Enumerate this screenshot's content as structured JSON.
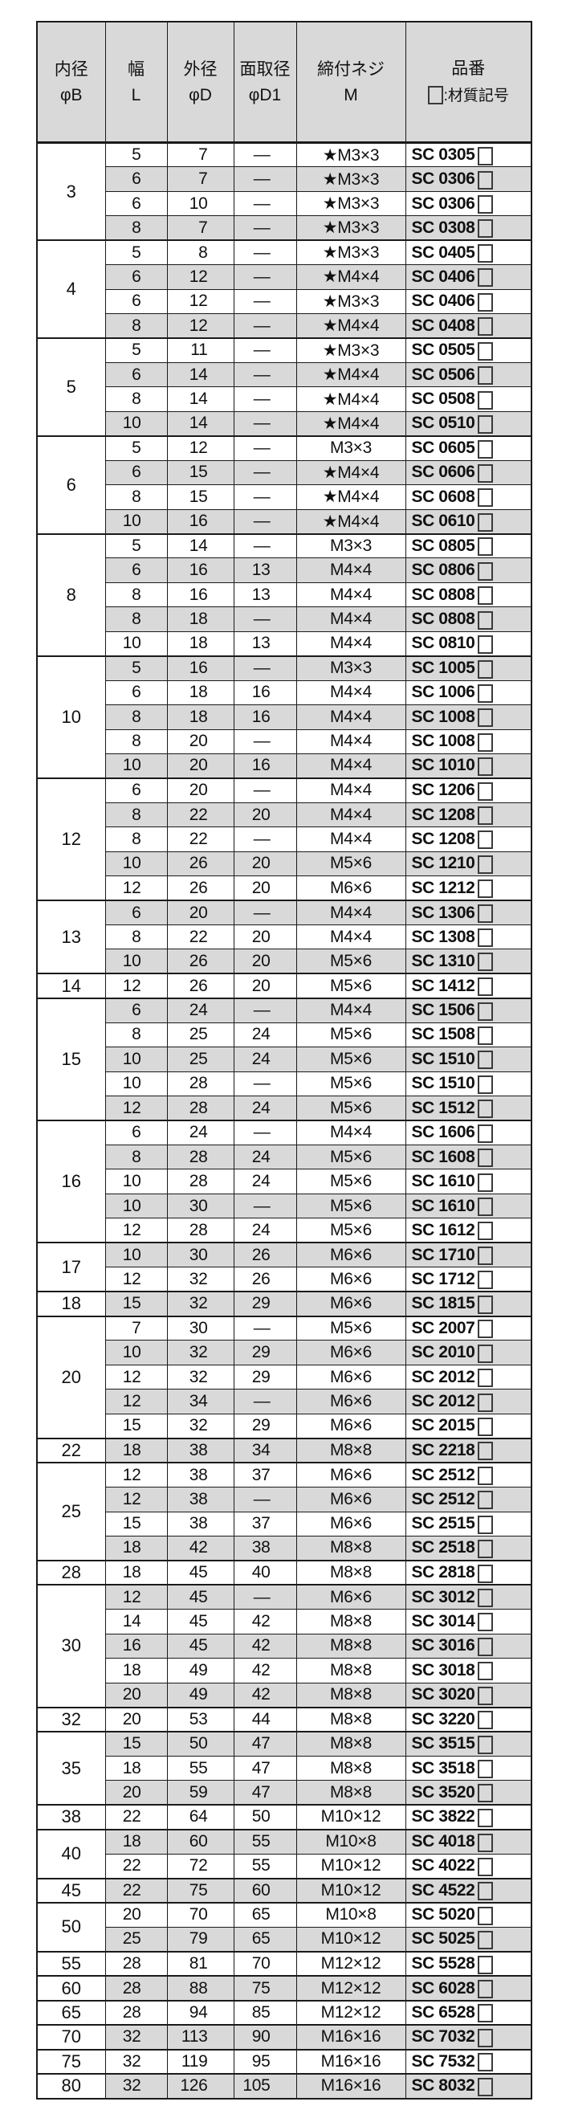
{
  "colors": {
    "border": "#1a1a1a",
    "row_alt_gray": "#d9d9d9",
    "header_gray": "#d9d9d9",
    "text": "#111111"
  },
  "table": {
    "headers": [
      {
        "line1": "内径",
        "line2": "φB",
        "box_prefix": false
      },
      {
        "line1": "幅",
        "line2": "L",
        "box_prefix": false
      },
      {
        "line1": "外径",
        "line2": "φD",
        "box_prefix": false
      },
      {
        "line1": "面取径",
        "line2": "φD1",
        "box_prefix": false
      },
      {
        "line1": "締付ネジ",
        "line2": "M",
        "box_prefix": false
      },
      {
        "line1": "品番",
        "line2": ":材質記号",
        "box_prefix": true
      }
    ],
    "groups": [
      {
        "bore": "3",
        "rows": [
          [
            "5",
            "7",
            "—",
            "★M3×3",
            "SC 0305"
          ],
          [
            "6",
            "7",
            "—",
            "★M3×3",
            "SC 0306"
          ],
          [
            "6",
            "10",
            "—",
            "★M3×3",
            "SC 0306"
          ],
          [
            "8",
            "7",
            "—",
            "★M3×3",
            "SC 0308"
          ]
        ]
      },
      {
        "bore": "4",
        "rows": [
          [
            "5",
            "8",
            "—",
            "★M3×3",
            "SC 0405"
          ],
          [
            "6",
            "12",
            "—",
            "★M4×4",
            "SC 0406"
          ],
          [
            "6",
            "12",
            "—",
            "★M3×3",
            "SC 0406"
          ],
          [
            "8",
            "12",
            "—",
            "★M4×4",
            "SC 0408"
          ]
        ]
      },
      {
        "bore": "5",
        "rows": [
          [
            "5",
            "11",
            "—",
            "★M3×3",
            "SC 0505"
          ],
          [
            "6",
            "14",
            "—",
            "★M4×4",
            "SC 0506"
          ],
          [
            "8",
            "14",
            "—",
            "★M4×4",
            "SC 0508"
          ],
          [
            "10",
            "14",
            "—",
            "★M4×4",
            "SC 0510"
          ]
        ]
      },
      {
        "bore": "6",
        "rows": [
          [
            "5",
            "12",
            "—",
            "M3×3",
            "SC 0605"
          ],
          [
            "6",
            "15",
            "—",
            "★M4×4",
            "SC 0606"
          ],
          [
            "8",
            "15",
            "—",
            "★M4×4",
            "SC 0608"
          ],
          [
            "10",
            "16",
            "—",
            "★M4×4",
            "SC 0610"
          ]
        ]
      },
      {
        "bore": "8",
        "rows": [
          [
            "5",
            "14",
            "—",
            "M3×3",
            "SC 0805"
          ],
          [
            "6",
            "16",
            "13",
            "M4×4",
            "SC 0806"
          ],
          [
            "8",
            "16",
            "13",
            "M4×4",
            "SC 0808"
          ],
          [
            "8",
            "18",
            "—",
            "M4×4",
            "SC 0808"
          ],
          [
            "10",
            "18",
            "13",
            "M4×4",
            "SC 0810"
          ]
        ]
      },
      {
        "bore": "10",
        "rows": [
          [
            "5",
            "16",
            "—",
            "M3×3",
            "SC 1005"
          ],
          [
            "6",
            "18",
            "16",
            "M4×4",
            "SC 1006"
          ],
          [
            "8",
            "18",
            "16",
            "M4×4",
            "SC 1008"
          ],
          [
            "8",
            "20",
            "—",
            "M4×4",
            "SC 1008"
          ],
          [
            "10",
            "20",
            "16",
            "M4×4",
            "SC 1010"
          ]
        ]
      },
      {
        "bore": "12",
        "rows": [
          [
            "6",
            "20",
            "—",
            "M4×4",
            "SC 1206"
          ],
          [
            "8",
            "22",
            "20",
            "M4×4",
            "SC 1208"
          ],
          [
            "8",
            "22",
            "—",
            "M4×4",
            "SC 1208"
          ],
          [
            "10",
            "26",
            "20",
            "M5×6",
            "SC 1210"
          ],
          [
            "12",
            "26",
            "20",
            "M6×6",
            "SC 1212"
          ]
        ]
      },
      {
        "bore": "13",
        "rows": [
          [
            "6",
            "20",
            "—",
            "M4×4",
            "SC 1306"
          ],
          [
            "8",
            "22",
            "20",
            "M4×4",
            "SC 1308"
          ],
          [
            "10",
            "26",
            "20",
            "M5×6",
            "SC 1310"
          ]
        ]
      },
      {
        "bore": "14",
        "rows": [
          [
            "12",
            "26",
            "20",
            "M5×6",
            "SC 1412"
          ]
        ]
      },
      {
        "bore": "15",
        "rows": [
          [
            "6",
            "24",
            "—",
            "M4×4",
            "SC 1506"
          ],
          [
            "8",
            "25",
            "24",
            "M5×6",
            "SC 1508"
          ],
          [
            "10",
            "25",
            "24",
            "M5×6",
            "SC 1510"
          ],
          [
            "10",
            "28",
            "—",
            "M5×6",
            "SC 1510"
          ],
          [
            "12",
            "28",
            "24",
            "M5×6",
            "SC 1512"
          ]
        ]
      },
      {
        "bore": "16",
        "rows": [
          [
            "6",
            "24",
            "—",
            "M4×4",
            "SC 1606"
          ],
          [
            "8",
            "28",
            "24",
            "M5×6",
            "SC 1608"
          ],
          [
            "10",
            "28",
            "24",
            "M5×6",
            "SC 1610"
          ],
          [
            "10",
            "30",
            "—",
            "M5×6",
            "SC 1610"
          ],
          [
            "12",
            "28",
            "24",
            "M5×6",
            "SC 1612"
          ]
        ]
      },
      {
        "bore": "17",
        "rows": [
          [
            "10",
            "30",
            "26",
            "M6×6",
            "SC 1710"
          ],
          [
            "12",
            "32",
            "26",
            "M6×6",
            "SC 1712"
          ]
        ]
      },
      {
        "bore": "18",
        "rows": [
          [
            "15",
            "32",
            "29",
            "M6×6",
            "SC 1815"
          ]
        ]
      },
      {
        "bore": "20",
        "rows": [
          [
            "7",
            "30",
            "—",
            "M5×6",
            "SC 2007"
          ],
          [
            "10",
            "32",
            "29",
            "M6×6",
            "SC 2010"
          ],
          [
            "12",
            "32",
            "29",
            "M6×6",
            "SC 2012"
          ],
          [
            "12",
            "34",
            "—",
            "M6×6",
            "SC 2012"
          ],
          [
            "15",
            "32",
            "29",
            "M6×6",
            "SC 2015"
          ]
        ]
      },
      {
        "bore": "22",
        "rows": [
          [
            "18",
            "38",
            "34",
            "M8×8",
            "SC 2218"
          ]
        ]
      },
      {
        "bore": "25",
        "rows": [
          [
            "12",
            "38",
            "37",
            "M6×6",
            "SC 2512"
          ],
          [
            "12",
            "38",
            "—",
            "M6×6",
            "SC 2512"
          ],
          [
            "15",
            "38",
            "37",
            "M6×6",
            "SC 2515"
          ],
          [
            "18",
            "42",
            "38",
            "M8×8",
            "SC 2518"
          ]
        ]
      },
      {
        "bore": "28",
        "rows": [
          [
            "18",
            "45",
            "40",
            "M8×8",
            "SC 2818"
          ]
        ]
      },
      {
        "bore": "30",
        "rows": [
          [
            "12",
            "45",
            "—",
            "M6×6",
            "SC 3012"
          ],
          [
            "14",
            "45",
            "42",
            "M8×8",
            "SC 3014"
          ],
          [
            "16",
            "45",
            "42",
            "M8×8",
            "SC 3016"
          ],
          [
            "18",
            "49",
            "42",
            "M8×8",
            "SC 3018"
          ],
          [
            "20",
            "49",
            "42",
            "M8×8",
            "SC 3020"
          ]
        ]
      },
      {
        "bore": "32",
        "rows": [
          [
            "20",
            "53",
            "44",
            "M8×8",
            "SC 3220"
          ]
        ]
      },
      {
        "bore": "35",
        "rows": [
          [
            "15",
            "50",
            "47",
            "M8×8",
            "SC 3515"
          ],
          [
            "18",
            "55",
            "47",
            "M8×8",
            "SC 3518"
          ],
          [
            "20",
            "59",
            "47",
            "M8×8",
            "SC 3520"
          ]
        ]
      },
      {
        "bore": "38",
        "rows": [
          [
            "22",
            "64",
            "50",
            "M10×12",
            "SC 3822"
          ]
        ]
      },
      {
        "bore": "40",
        "rows": [
          [
            "18",
            "60",
            "55",
            "M10×8",
            "SC 4018"
          ],
          [
            "22",
            "72",
            "55",
            "M10×12",
            "SC 4022"
          ]
        ]
      },
      {
        "bore": "45",
        "rows": [
          [
            "22",
            "75",
            "60",
            "M10×12",
            "SC 4522"
          ]
        ]
      },
      {
        "bore": "50",
        "rows": [
          [
            "20",
            "70",
            "65",
            "M10×8",
            "SC 5020"
          ],
          [
            "25",
            "79",
            "65",
            "M10×12",
            "SC 5025"
          ]
        ]
      },
      {
        "bore": "55",
        "rows": [
          [
            "28",
            "81",
            "70",
            "M12×12",
            "SC 5528"
          ]
        ]
      },
      {
        "bore": "60",
        "rows": [
          [
            "28",
            "88",
            "75",
            "M12×12",
            "SC 6028"
          ]
        ]
      },
      {
        "bore": "65",
        "rows": [
          [
            "28",
            "94",
            "85",
            "M12×12",
            "SC 6528"
          ]
        ]
      },
      {
        "bore": "70",
        "rows": [
          [
            "32",
            "113",
            "90",
            "M16×16",
            "SC 7032"
          ]
        ]
      },
      {
        "bore": "75",
        "rows": [
          [
            "32",
            "119",
            "95",
            "M16×16",
            "SC 7532"
          ]
        ]
      },
      {
        "bore": "80",
        "rows": [
          [
            "32",
            "126",
            "105",
            "M16×16",
            "SC 8032"
          ]
        ]
      }
    ]
  }
}
